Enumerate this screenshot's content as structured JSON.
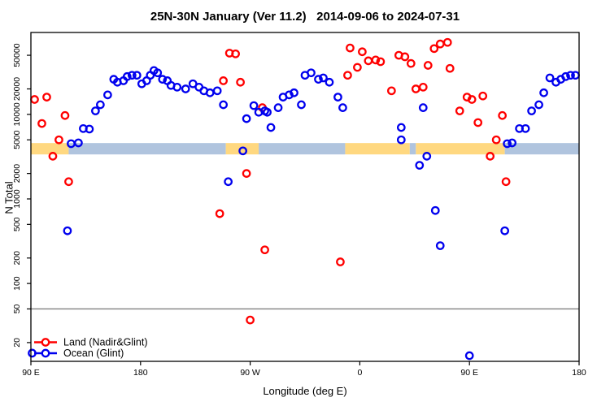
{
  "chart_data": {
    "type": "scatter",
    "title": "25N-30N January (Ver 11.2)   2014-09-06 to 2024-07-31",
    "xlabel": "Longitude (deg E)",
    "ylabel": "N Total",
    "x_axis": {
      "lim": [
        90,
        540
      ],
      "ticks": [
        {
          "pos": 90,
          "label": "90 E"
        },
        {
          "pos": 180,
          "label": "180"
        },
        {
          "pos": 270,
          "label": "90 W"
        },
        {
          "pos": 360,
          "label": "0"
        },
        {
          "pos": 450,
          "label": "90 E"
        },
        {
          "pos": 540,
          "label": "180"
        }
      ]
    },
    "y_axis": {
      "scale": "log",
      "lim": [
        12,
        93000
      ],
      "ticks": [
        {
          "value": 20,
          "label": "20"
        },
        {
          "value": 50,
          "label": "50"
        },
        {
          "value": 100,
          "label": "100"
        },
        {
          "value": 200,
          "label": "200"
        },
        {
          "value": 500,
          "label": "500"
        },
        {
          "value": 1000,
          "label": "1000"
        },
        {
          "value": 2000,
          "label": "2000"
        },
        {
          "value": 5000,
          "label": "5000"
        },
        {
          "value": 10000,
          "label": "10000"
        },
        {
          "value": 20000,
          "label": "20000"
        },
        {
          "value": 50000,
          "label": "50000"
        }
      ]
    },
    "ref_line": {
      "value": 50,
      "color": "#7f7f7f"
    },
    "surface_band": {
      "y_range": [
        3360,
        4580
      ],
      "land_color": "#FFD880",
      "ocean_color": "#B0C4DE",
      "segments": [
        {
          "type": "land",
          "from": 90,
          "to": 121
        },
        {
          "type": "ocean",
          "from": 121,
          "to": 250
        },
        {
          "type": "land",
          "from": 250,
          "to": 277
        },
        {
          "type": "ocean",
          "from": 277,
          "to": 348
        },
        {
          "type": "land",
          "from": 348,
          "to": 401
        },
        {
          "type": "ocean",
          "from": 401,
          "to": 406
        },
        {
          "type": "land",
          "from": 406,
          "to": 479
        },
        {
          "type": "ocean",
          "from": 479,
          "to": 540
        }
      ]
    },
    "legend": {
      "items": [
        {
          "series": "land",
          "label": "Land (Nadir&Glint)",
          "color": "#FF0000"
        },
        {
          "series": "ocean",
          "label": "Ocean (Glint)",
          "color": "#0000EE"
        }
      ]
    },
    "series": [
      {
        "name": "Land (Nadir&Glint)",
        "color": "#FF0000",
        "points": [
          [
            93,
            15000
          ],
          [
            103,
            16000
          ],
          [
            99,
            7800
          ],
          [
            118,
            9700
          ],
          [
            113,
            5000
          ],
          [
            108,
            3200
          ],
          [
            121,
            1600
          ],
          [
            253,
            53000
          ],
          [
            258,
            52000
          ],
          [
            248,
            25000
          ],
          [
            262,
            24000
          ],
          [
            280,
            12000
          ],
          [
            267,
            2000
          ],
          [
            245,
            670
          ],
          [
            282,
            250
          ],
          [
            270,
            37
          ],
          [
            344,
            180
          ],
          [
            350,
            29000
          ],
          [
            352,
            61000
          ],
          [
            358,
            36000
          ],
          [
            362,
            55000
          ],
          [
            367,
            43000
          ],
          [
            373,
            44000
          ],
          [
            377,
            42000
          ],
          [
            386,
            19000
          ],
          [
            392,
            50000
          ],
          [
            397,
            48000
          ],
          [
            402,
            40000
          ],
          [
            406,
            20000
          ],
          [
            412,
            21000
          ],
          [
            416,
            38000
          ],
          [
            421,
            60000
          ],
          [
            426,
            68000
          ],
          [
            432,
            71000
          ],
          [
            434,
            35000
          ],
          [
            442,
            11000
          ],
          [
            448,
            16000
          ],
          [
            452,
            15000
          ],
          [
            461,
            16500
          ],
          [
            457,
            8000
          ],
          [
            477,
            9700
          ],
          [
            472,
            5000
          ],
          [
            467,
            3200
          ],
          [
            480,
            1600
          ]
        ]
      },
      {
        "name": "Ocean (Glint)",
        "color": "#0000EE",
        "points": [
          [
            91,
            15
          ],
          [
            120,
            420
          ],
          [
            123,
            4500
          ],
          [
            129,
            4600
          ],
          [
            133,
            6800
          ],
          [
            138,
            6700
          ],
          [
            143,
            11000
          ],
          [
            147,
            13000
          ],
          [
            153,
            17000
          ],
          [
            158,
            26000
          ],
          [
            161,
            24000
          ],
          [
            166,
            25000
          ],
          [
            169,
            28000
          ],
          [
            173,
            29000
          ],
          [
            177,
            29000
          ],
          [
            181,
            23000
          ],
          [
            185,
            25000
          ],
          [
            188,
            29000
          ],
          [
            191,
            33000
          ],
          [
            194,
            31000
          ],
          [
            198,
            26000
          ],
          [
            202,
            25000
          ],
          [
            205,
            22000
          ],
          [
            210,
            21000
          ],
          [
            217,
            20000
          ],
          [
            223,
            23000
          ],
          [
            228,
            21000
          ],
          [
            232,
            19000
          ],
          [
            237,
            18000
          ],
          [
            243,
            19000
          ],
          [
            248,
            13000
          ],
          [
            252,
            1600
          ],
          [
            264,
            3700
          ],
          [
            267,
            8900
          ],
          [
            273,
            12700
          ],
          [
            277,
            10600
          ],
          [
            282,
            11000
          ],
          [
            284,
            10600
          ],
          [
            287,
            7000
          ],
          [
            293,
            12000
          ],
          [
            297,
            16000
          ],
          [
            302,
            17000
          ],
          [
            306,
            18000
          ],
          [
            312,
            13000
          ],
          [
            315,
            29000
          ],
          [
            320,
            31000
          ],
          [
            326,
            26000
          ],
          [
            330,
            27000
          ],
          [
            335,
            24000
          ],
          [
            342,
            16000
          ],
          [
            346,
            12000
          ],
          [
            394,
            7000
          ],
          [
            394,
            5000
          ],
          [
            409,
            2500
          ],
          [
            412,
            12000
          ],
          [
            415,
            3200
          ],
          [
            422,
            730
          ],
          [
            426,
            280
          ],
          [
            450,
            14
          ],
          [
            479,
            420
          ],
          [
            481,
            4500
          ],
          [
            485,
            4600
          ],
          [
            491,
            6800
          ],
          [
            496,
            6800
          ],
          [
            501,
            11000
          ],
          [
            507,
            13000
          ],
          [
            511,
            18000
          ],
          [
            516,
            27000
          ],
          [
            521,
            24000
          ],
          [
            525,
            26000
          ],
          [
            529,
            28000
          ],
          [
            533,
            29000
          ],
          [
            537,
            29000
          ]
        ]
      }
    ]
  }
}
